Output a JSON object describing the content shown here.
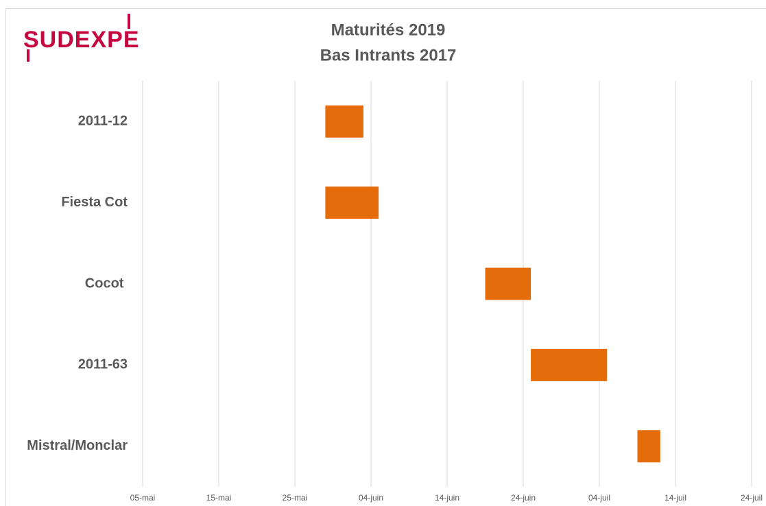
{
  "logo": "SUDEXPE",
  "chart_data": {
    "type": "gantt",
    "title": "Maturités 2019",
    "subtitle": "Bas Intrants 2017",
    "categories": [
      "2011-12",
      "Fiesta Cot",
      "Cocot ",
      "2011-63",
      "Mistral/Monclar"
    ],
    "series": [
      {
        "color": "#e46c0a",
        "starts": [
          149,
          149,
          170,
          176,
          190
        ],
        "ends": [
          154,
          156,
          176,
          186,
          193
        ]
      }
    ],
    "xlim": [
      125,
      205
    ],
    "xticks": [
      {
        "value": 125,
        "label": "05-mai"
      },
      {
        "value": 135,
        "label": "15-mai"
      },
      {
        "value": 145,
        "label": "25-mai"
      },
      {
        "value": 155,
        "label": "04-juin"
      },
      {
        "value": 165,
        "label": "14-juin"
      },
      {
        "value": 175,
        "label": "24-juin"
      },
      {
        "value": 185,
        "label": "04-juil"
      },
      {
        "value": 195,
        "label": "14-juil"
      },
      {
        "value": 205,
        "label": "24-juil"
      }
    ],
    "grid": true
  }
}
